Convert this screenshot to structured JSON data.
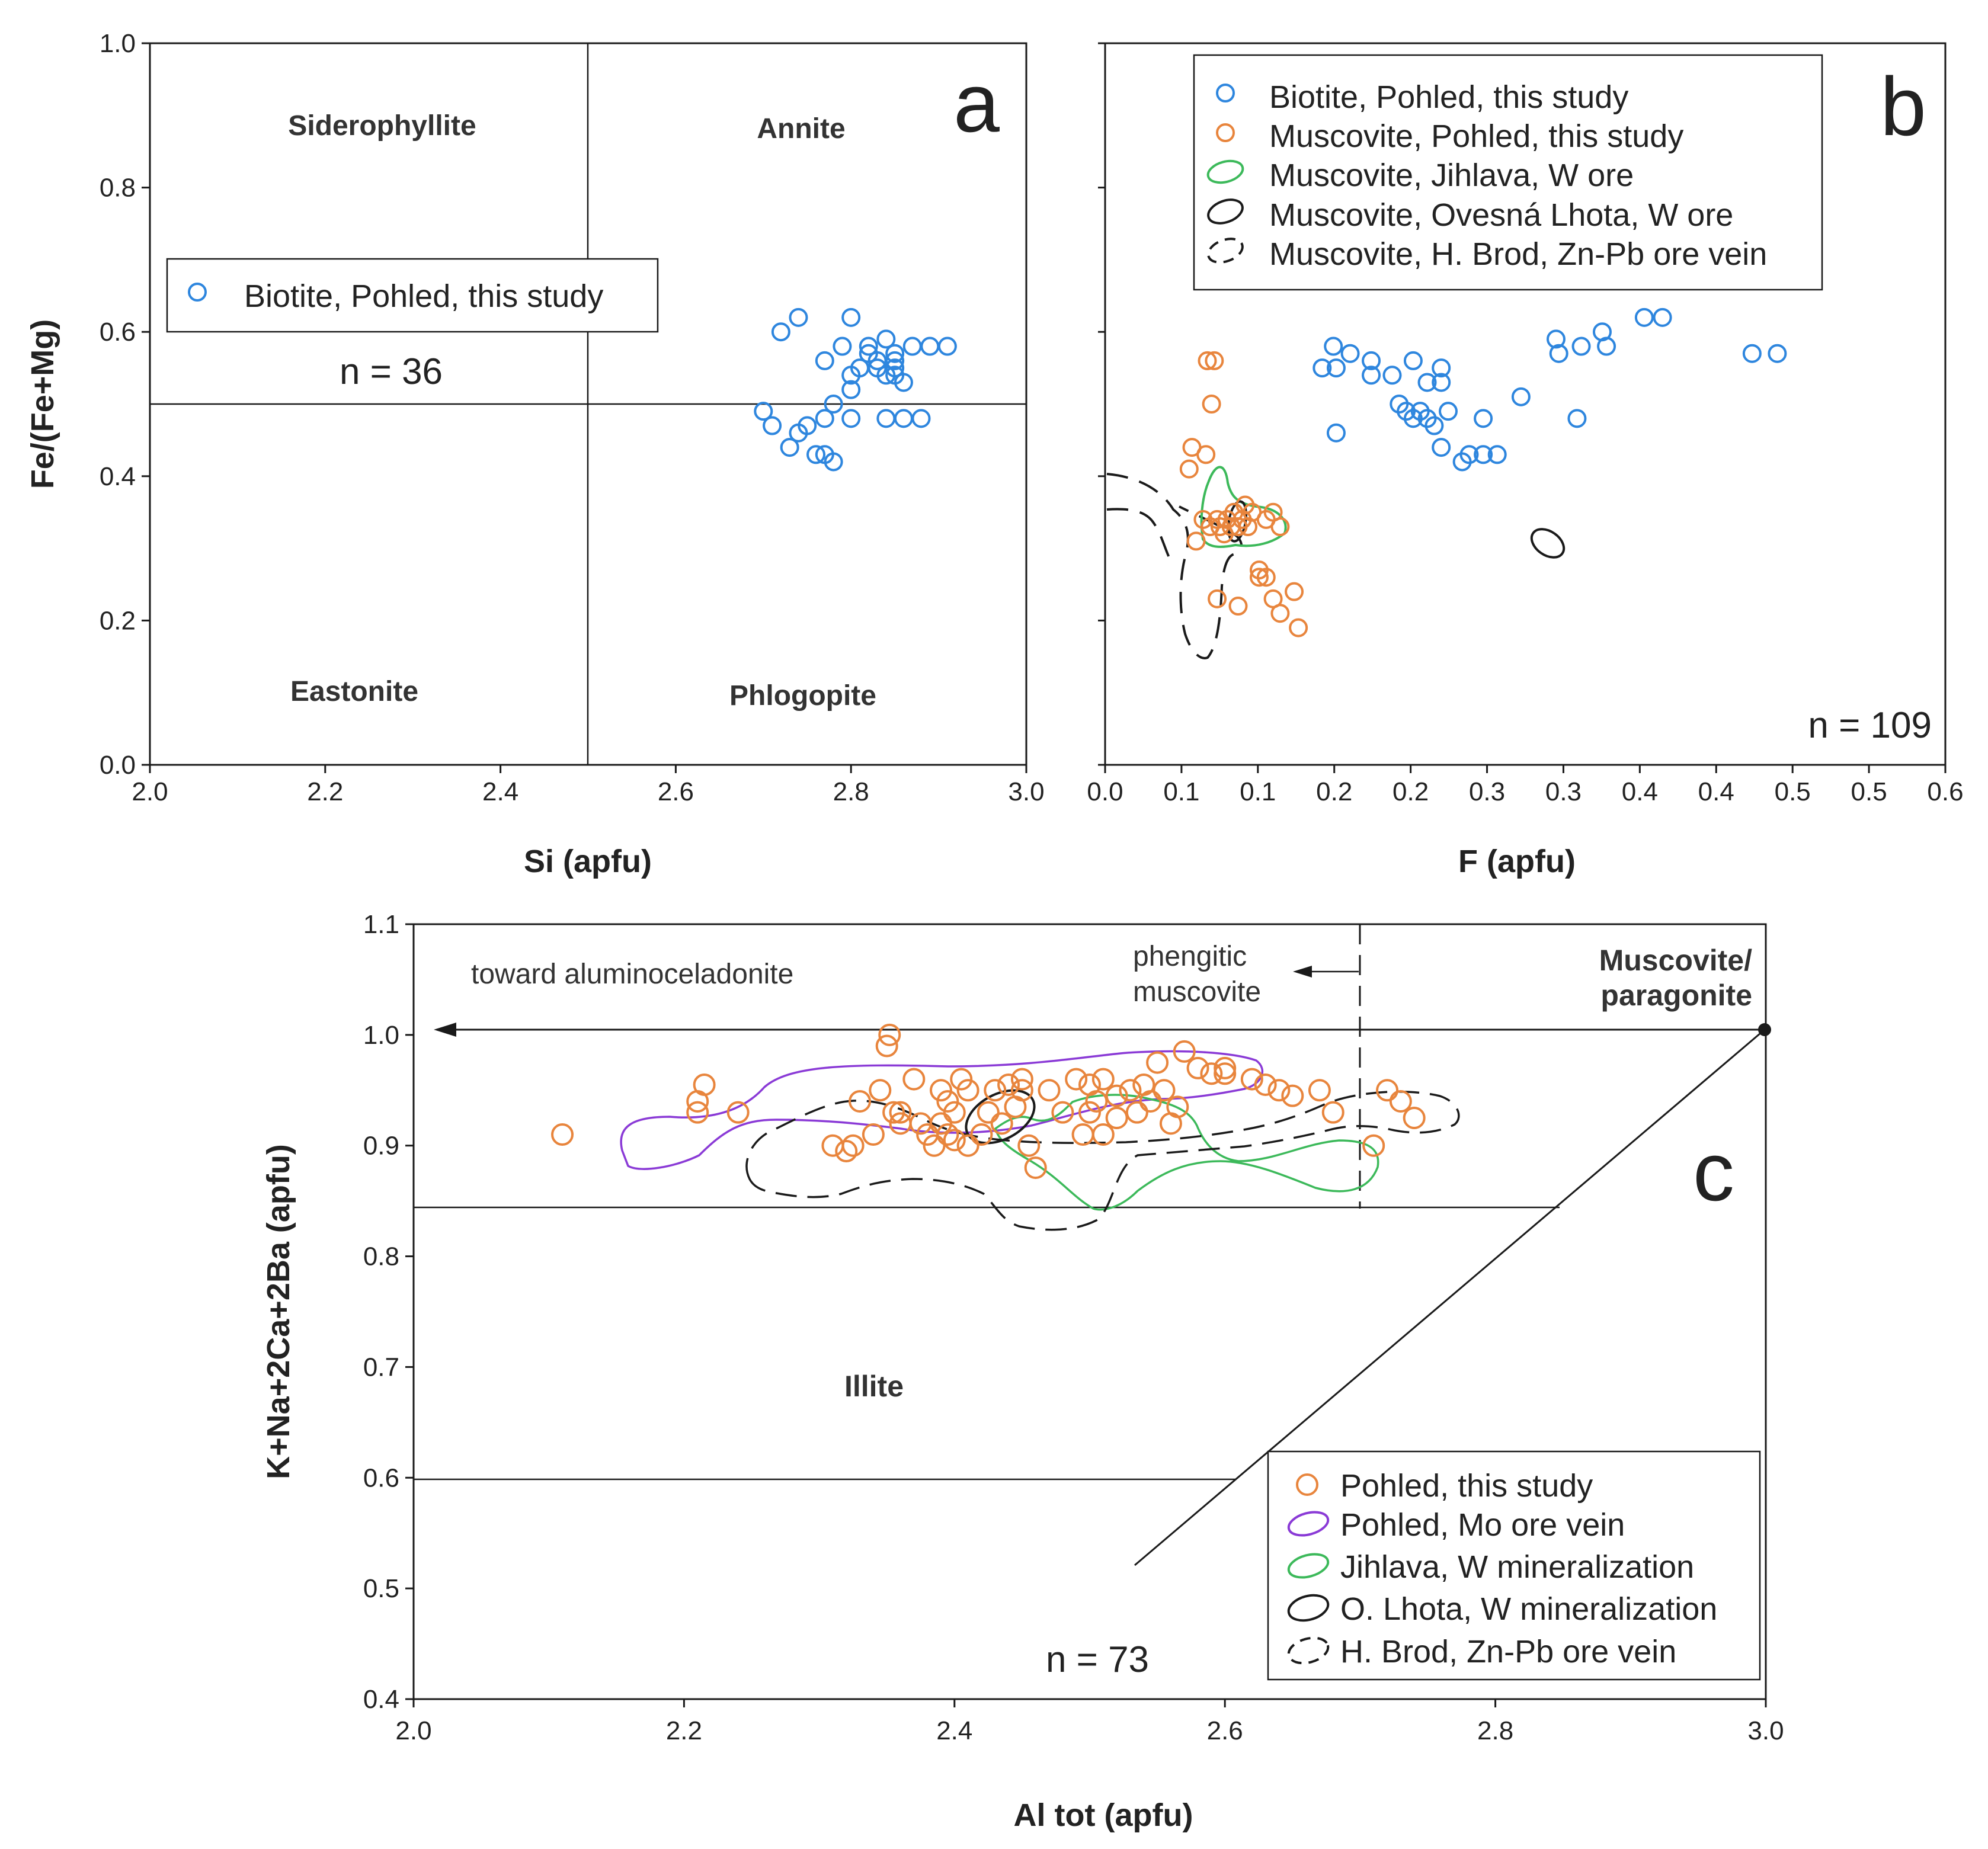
{
  "colors": {
    "biotite": "#2e86de",
    "muscovite": "#e8853d",
    "jihlava": "#3cb95a",
    "ovesna": "#1a1a1a",
    "brod": "#1a1a1a",
    "mo_vein": "#8a3ad6",
    "axis": "#1a1a1a"
  },
  "chart_data": [
    {
      "id": "a",
      "type": "scatter",
      "panel_label": "a",
      "xlabel": "Si (apfu)",
      "ylabel": "Fe/(Fe+Mg)",
      "xlim": [
        2.0,
        3.0
      ],
      "ylim": [
        0.0,
        1.0
      ],
      "xticks": [
        "2.0",
        "2.2",
        "2.4",
        "2.6",
        "2.8",
        "3.0"
      ],
      "yticks": [
        "0.0",
        "0.2",
        "0.4",
        "0.6",
        "0.8",
        "1.0"
      ],
      "regions": [
        "Siderophyllite",
        "Annite",
        "Eastonite",
        "Phlogopite"
      ],
      "legend": [
        "Biotite, Pohled, this study"
      ],
      "n_label": "n = 36",
      "series": [
        {
          "name": "Biotite, Pohled, this study",
          "color_key": "biotite",
          "points": [
            [
              2.7,
              0.49
            ],
            [
              2.71,
              0.47
            ],
            [
              2.72,
              0.6
            ],
            [
              2.73,
              0.44
            ],
            [
              2.74,
              0.46
            ],
            [
              2.74,
              0.62
            ],
            [
              2.75,
              0.47
            ],
            [
              2.76,
              0.43
            ],
            [
              2.77,
              0.43
            ],
            [
              2.77,
              0.56
            ],
            [
              2.77,
              0.48
            ],
            [
              2.78,
              0.42
            ],
            [
              2.78,
              0.5
            ],
            [
              2.79,
              0.58
            ],
            [
              2.8,
              0.48
            ],
            [
              2.8,
              0.62
            ],
            [
              2.8,
              0.54
            ],
            [
              2.8,
              0.52
            ],
            [
              2.81,
              0.55
            ],
            [
              2.82,
              0.57
            ],
            [
              2.82,
              0.58
            ],
            [
              2.83,
              0.56
            ],
            [
              2.83,
              0.55
            ],
            [
              2.84,
              0.59
            ],
            [
              2.84,
              0.48
            ],
            [
              2.84,
              0.54
            ],
            [
              2.85,
              0.55
            ],
            [
              2.85,
              0.56
            ],
            [
              2.85,
              0.57
            ],
            [
              2.85,
              0.54
            ],
            [
              2.86,
              0.53
            ],
            [
              2.86,
              0.48
            ],
            [
              2.87,
              0.58
            ],
            [
              2.88,
              0.48
            ],
            [
              2.89,
              0.58
            ],
            [
              2.91,
              0.58
            ]
          ]
        }
      ]
    },
    {
      "id": "b",
      "type": "scatter",
      "panel_label": "b",
      "xlabel": "F (apfu)",
      "ylabel": "",
      "xlim": [
        0.0,
        0.6
      ],
      "ylim": [
        0.0,
        1.0
      ],
      "xticks": [
        "0.0",
        "0.1",
        "0.1",
        "0.2",
        "0.2",
        "0.3",
        "0.3",
        "0.4",
        "0.4",
        "0.5",
        "0.5",
        "0.6"
      ],
      "legend": [
        "Biotite, Pohled, this study",
        "Muscovite, Pohled, this study",
        "Muscovite, Jihlava, W ore",
        "Muscovite, Ovesná Lhota, W ore",
        "Muscovite, H. Brod, Zn-Pb ore vein"
      ],
      "n_label": "n = 109",
      "series": [
        {
          "name": "Biotite, Pohled, this study",
          "color_key": "biotite",
          "points": [
            [
              0.155,
              0.55
            ],
            [
              0.163,
              0.58
            ],
            [
              0.165,
              0.55
            ],
            [
              0.165,
              0.46
            ],
            [
              0.175,
              0.57
            ],
            [
              0.19,
              0.56
            ],
            [
              0.19,
              0.54
            ],
            [
              0.205,
              0.54
            ],
            [
              0.21,
              0.5
            ],
            [
              0.215,
              0.49
            ],
            [
              0.22,
              0.56
            ],
            [
              0.22,
              0.48
            ],
            [
              0.225,
              0.49
            ],
            [
              0.23,
              0.53
            ],
            [
              0.23,
              0.48
            ],
            [
              0.235,
              0.47
            ],
            [
              0.24,
              0.55
            ],
            [
              0.24,
              0.53
            ],
            [
              0.24,
              0.44
            ],
            [
              0.245,
              0.49
            ],
            [
              0.255,
              0.42
            ],
            [
              0.26,
              0.43
            ],
            [
              0.27,
              0.43
            ],
            [
              0.27,
              0.48
            ],
            [
              0.28,
              0.43
            ],
            [
              0.297,
              0.51
            ],
            [
              0.322,
              0.59
            ],
            [
              0.324,
              0.57
            ],
            [
              0.337,
              0.48
            ],
            [
              0.34,
              0.58
            ],
            [
              0.355,
              0.6
            ],
            [
              0.358,
              0.58
            ],
            [
              0.385,
              0.62
            ],
            [
              0.398,
              0.62
            ],
            [
              0.462,
              0.57
            ],
            [
              0.48,
              0.57
            ]
          ]
        },
        {
          "name": "Muscovite, Pohled, this study",
          "color_key": "muscovite",
          "points": [
            [
              0.06,
              0.41
            ],
            [
              0.062,
              0.44
            ],
            [
              0.065,
              0.31
            ],
            [
              0.07,
              0.34
            ],
            [
              0.072,
              0.43
            ],
            [
              0.073,
              0.56
            ],
            [
              0.075,
              0.33
            ],
            [
              0.076,
              0.5
            ],
            [
              0.078,
              0.56
            ],
            [
              0.08,
              0.34
            ],
            [
              0.08,
              0.23
            ],
            [
              0.082,
              0.33
            ],
            [
              0.085,
              0.32
            ],
            [
              0.087,
              0.34
            ],
            [
              0.09,
              0.33
            ],
            [
              0.092,
              0.35
            ],
            [
              0.095,
              0.33
            ],
            [
              0.095,
              0.22
            ],
            [
              0.098,
              0.34
            ],
            [
              0.1,
              0.36
            ],
            [
              0.102,
              0.33
            ],
            [
              0.105,
              0.35
            ],
            [
              0.11,
              0.27
            ],
            [
              0.11,
              0.26
            ],
            [
              0.115,
              0.26
            ],
            [
              0.115,
              0.34
            ],
            [
              0.12,
              0.35
            ],
            [
              0.12,
              0.23
            ],
            [
              0.125,
              0.33
            ],
            [
              0.125,
              0.21
            ],
            [
              0.135,
              0.24
            ],
            [
              0.138,
              0.19
            ]
          ]
        }
      ]
    },
    {
      "id": "c",
      "type": "scatter",
      "panel_label": "c",
      "xlabel": "Al tot (apfu)",
      "ylabel": "K+Na+2Ca+2Ba (apfu)",
      "xlim": [
        2.0,
        3.0
      ],
      "ylim": [
        0.4,
        1.1
      ],
      "xticks": [
        "2.0",
        "2.2",
        "2.4",
        "2.6",
        "2.8",
        "3.0"
      ],
      "yticks": [
        "0.4",
        "0.5",
        "0.6",
        "0.7",
        "0.8",
        "0.9",
        "1.0",
        "1.1"
      ],
      "regions": [
        "Illite",
        "Muscovite/",
        "paragonite"
      ],
      "annotations": [
        "toward aluminoceladonite",
        "phengitic",
        "muscovite"
      ],
      "legend": [
        "Pohled, this study",
        "Pohled, Mo ore vein",
        "Jihlava, W mineralization",
        "O. Lhota, W mineralization",
        "H. Brod, Zn-Pb ore vein"
      ],
      "n_label": "n = 73",
      "series": [
        {
          "name": "Pohled, this study",
          "color_key": "muscovite",
          "points": [
            [
              2.11,
              0.91
            ],
            [
              2.21,
              0.93
            ],
            [
              2.215,
              0.955
            ],
            [
              2.24,
              0.93
            ],
            [
              2.31,
              0.9
            ],
            [
              2.32,
              0.895
            ],
            [
              2.325,
              0.9
            ],
            [
              2.33,
              0.94
            ],
            [
              2.34,
              0.91
            ],
            [
              2.345,
              0.95
            ],
            [
              2.35,
              0.99
            ],
            [
              2.352,
              1.0
            ],
            [
              2.36,
              0.92
            ],
            [
              2.36,
              0.93
            ],
            [
              2.37,
              0.96
            ],
            [
              2.375,
              0.92
            ],
            [
              2.38,
              0.91
            ],
            [
              2.385,
              0.9
            ],
            [
              2.39,
              0.95
            ],
            [
              2.39,
              0.92
            ],
            [
              2.395,
              0.91
            ],
            [
              2.4,
              0.905
            ],
            [
              2.4,
              0.93
            ],
            [
              2.405,
              0.96
            ],
            [
              2.41,
              0.9
            ],
            [
              2.41,
              0.95
            ],
            [
              2.42,
              0.91
            ],
            [
              2.425,
              0.93
            ],
            [
              2.43,
              0.95
            ],
            [
              2.435,
              0.92
            ],
            [
              2.44,
              0.955
            ],
            [
              2.45,
              0.96
            ],
            [
              2.45,
              0.95
            ],
            [
              2.455,
              0.9
            ],
            [
              2.46,
              0.88
            ],
            [
              2.47,
              0.95
            ],
            [
              2.48,
              0.93
            ],
            [
              2.49,
              0.96
            ],
            [
              2.495,
              0.91
            ],
            [
              2.5,
              0.955
            ],
            [
              2.5,
              0.93
            ],
            [
              2.505,
              0.94
            ],
            [
              2.51,
              0.96
            ],
            [
              2.51,
              0.91
            ],
            [
              2.52,
              0.945
            ],
            [
              2.53,
              0.95
            ],
            [
              2.535,
              0.93
            ],
            [
              2.54,
              0.955
            ],
            [
              2.545,
              0.94
            ],
            [
              2.55,
              0.975
            ],
            [
              2.555,
              0.95
            ],
            [
              2.56,
              0.92
            ],
            [
              2.565,
              0.935
            ],
            [
              2.57,
              0.985
            ],
            [
              2.58,
              0.97
            ],
            [
              2.59,
              0.965
            ],
            [
              2.6,
              0.97
            ],
            [
              2.62,
              0.96
            ],
            [
              2.63,
              0.955
            ],
            [
              2.64,
              0.95
            ],
            [
              2.65,
              0.945
            ],
            [
              2.67,
              0.95
            ],
            [
              2.68,
              0.93
            ],
            [
              2.71,
              0.9
            ],
            [
              2.72,
              0.95
            ],
            [
              2.73,
              0.94
            ],
            [
              2.74,
              0.925
            ],
            [
              2.21,
              0.94
            ],
            [
              2.355,
              0.93
            ],
            [
              2.395,
              0.94
            ],
            [
              2.445,
              0.935
            ],
            [
              2.52,
              0.925
            ],
            [
              2.6,
              0.965
            ]
          ]
        }
      ]
    }
  ]
}
